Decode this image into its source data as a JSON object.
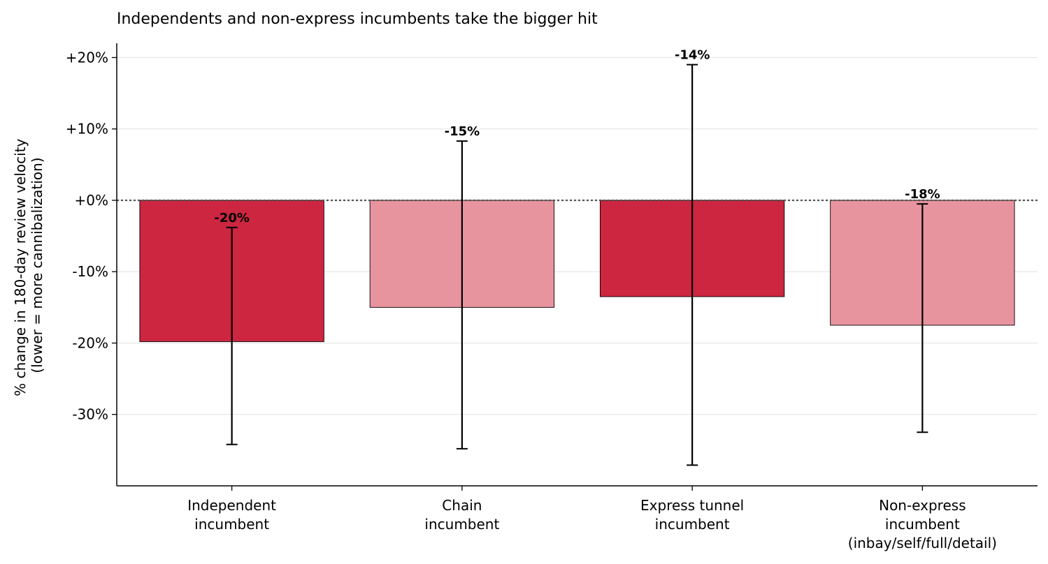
{
  "chart_data": {
    "type": "bar",
    "title": "Independents and non-express incumbents take the bigger hit",
    "ylabel_lines": [
      "% change in 180-day review velocity",
      "(lower = more cannibalization)"
    ],
    "xlabel": "",
    "ylim": [
      -40,
      22
    ],
    "yticks": [
      20,
      10,
      0,
      -10,
      -20,
      -30
    ],
    "ytick_labels": [
      "+20%",
      "+10%",
      "+0%",
      "-10%",
      "-20%",
      "-30%"
    ],
    "grid": "y",
    "reference_line": 0,
    "categories": [
      [
        "Independent",
        "incumbent"
      ],
      [
        "Chain",
        "incumbent"
      ],
      [
        "Express tunnel",
        "incumbent"
      ],
      [
        "Non-express",
        "incumbent",
        "(inbay/self/full/detail)"
      ]
    ],
    "values": [
      -19.8,
      -15.0,
      -13.5,
      -17.5
    ],
    "ci_low": [
      -34.2,
      -34.8,
      -37.1,
      -32.5
    ],
    "ci_high": [
      -3.8,
      8.3,
      19.0,
      -0.5
    ],
    "value_labels": [
      "-20%",
      "-15%",
      "-14%",
      "-18%"
    ],
    "colors": [
      "#cc2640",
      "#e8949f",
      "#cc2640",
      "#e8949f"
    ]
  }
}
